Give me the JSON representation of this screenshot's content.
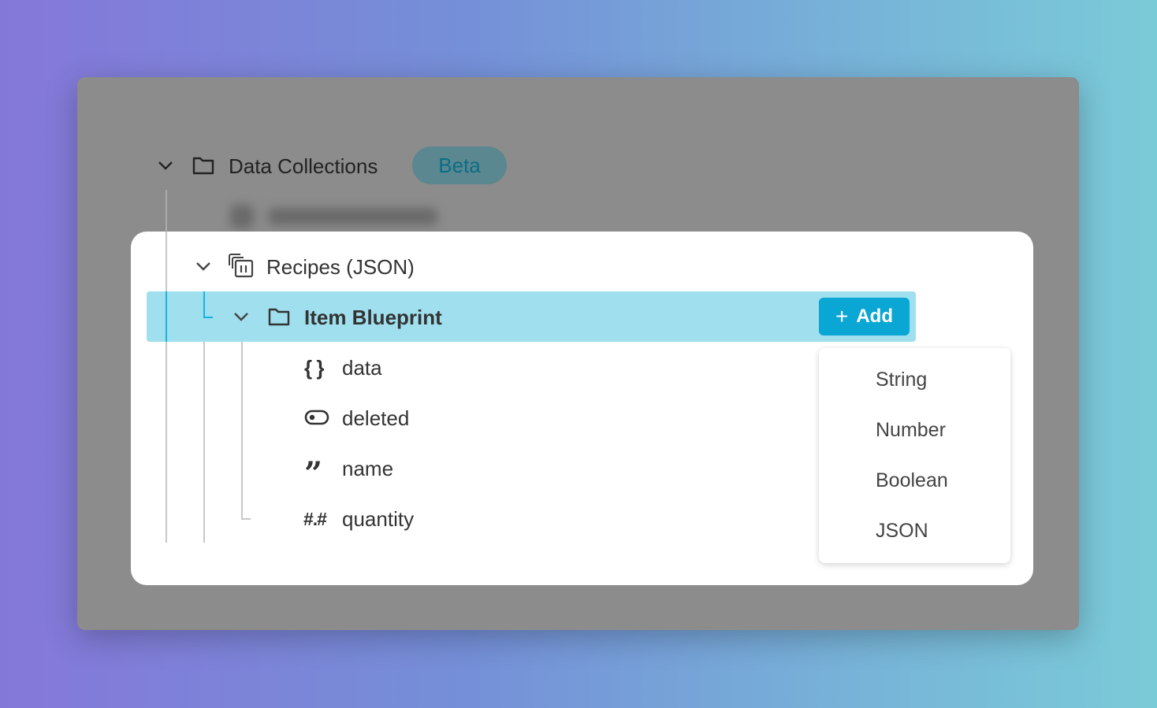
{
  "tree": {
    "root": {
      "label": "Data Collections",
      "badge": "Beta",
      "icon": "folder-icon"
    },
    "collection": {
      "label": "Recipes (JSON)",
      "icon": "collection-icon"
    },
    "selected": {
      "label": "Item Blueprint",
      "icon": "folder-icon",
      "add_label": "Add"
    },
    "fields": [
      {
        "label": "data",
        "icon": "braces-icon"
      },
      {
        "label": "deleted",
        "icon": "toggle-icon"
      },
      {
        "label": "name",
        "icon": "quote-icon"
      },
      {
        "label": "quantity",
        "icon": "number-icon"
      }
    ]
  },
  "add_menu": {
    "options": [
      "String",
      "Number",
      "Boolean",
      "JSON"
    ]
  },
  "colors": {
    "accent": "#0aa6d4",
    "highlight": "#9fdfee",
    "badge_text": "#0c6d86"
  }
}
